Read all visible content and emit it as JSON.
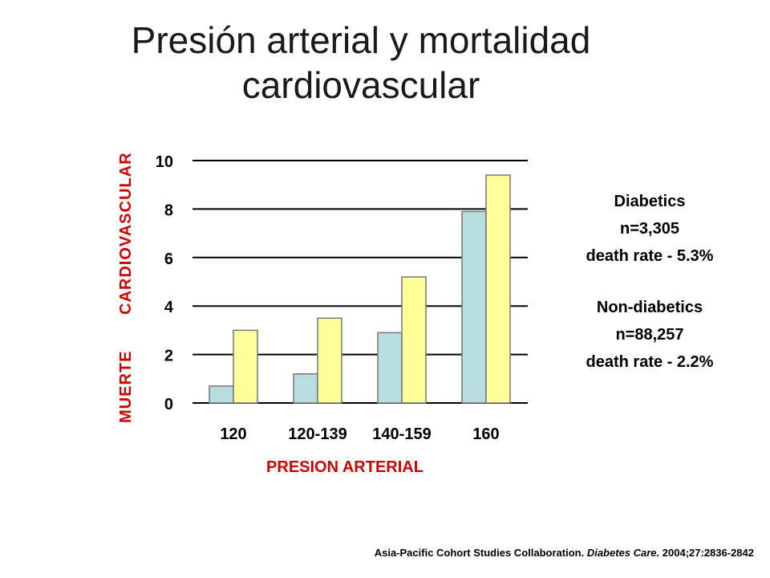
{
  "title": {
    "line1": "Presión arterial y mortalidad",
    "line2": "cardiovascular"
  },
  "chart_data": {
    "type": "bar",
    "categories": [
      "120",
      "120-139",
      "140-159",
      "160"
    ],
    "series": [
      {
        "name": "Non-diabetics",
        "color": "#b7dde0",
        "values": [
          0.7,
          1.2,
          2.9,
          7.9
        ]
      },
      {
        "name": "Diabetics",
        "color": "#ffff99",
        "values": [
          3.0,
          3.5,
          5.2,
          9.4
        ]
      }
    ],
    "ylim": [
      0,
      10
    ],
    "yticks": [
      "0",
      "2",
      "4",
      "6",
      "8",
      "10"
    ],
    "xlabel": "PRESION ARTERIAL",
    "ylabel_part1": "MUERTE",
    "ylabel_part2": "CARDIOVASCULAR",
    "grid": true,
    "label_color": "#cc0000"
  },
  "legend": {
    "diabetics": {
      "name": "Diabetics",
      "n": "n=3,305",
      "rate": "death rate - 5.3%"
    },
    "non_diabetics": {
      "name": "Non-diabetics",
      "n": "n=88,257",
      "rate": "death rate - 2.2%"
    }
  },
  "citation": {
    "authors": "Asia-Pacific Cohort Studies Collaboration.",
    "journal": "Diabetes Care.",
    "ref": "2004;27:2836-2842"
  }
}
